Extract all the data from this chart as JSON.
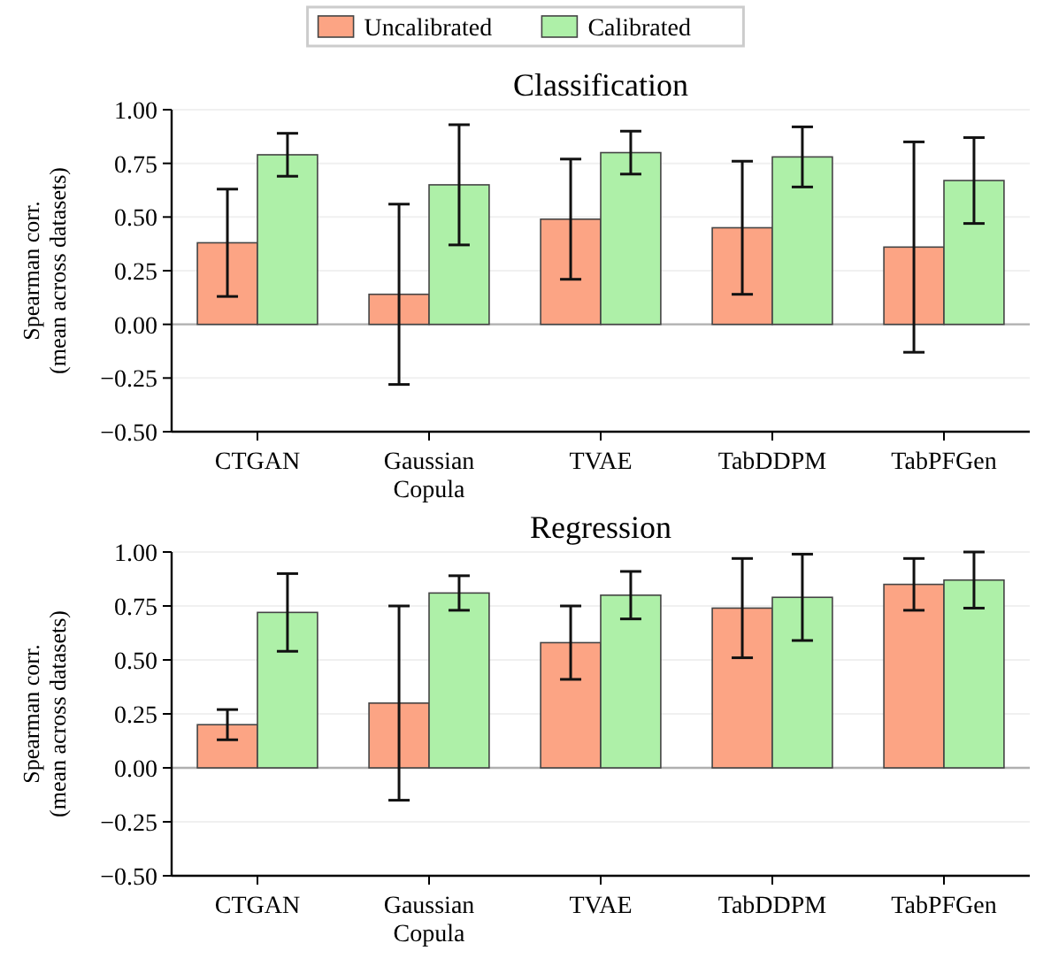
{
  "chart_data": [
    {
      "type": "bar",
      "title": "Classification",
      "ylabel": "Spearman corr.\n(mean across datasets)",
      "categories": [
        "CTGAN",
        "Gaussian\nCopula",
        "TVAE",
        "TabDDPM",
        "TabPFGen"
      ],
      "series": [
        {
          "name": "Uncalibrated",
          "color": "#fca484",
          "values": [
            0.38,
            0.14,
            0.49,
            0.45,
            0.36
          ],
          "errors": [
            [
              0.13,
              0.63
            ],
            [
              -0.28,
              0.56
            ],
            [
              0.21,
              0.77
            ],
            [
              0.14,
              0.76
            ],
            [
              -0.13,
              0.85
            ]
          ]
        },
        {
          "name": "Calibrated",
          "color": "#aef0a8",
          "values": [
            0.79,
            0.65,
            0.8,
            0.78,
            0.67
          ],
          "errors": [
            [
              0.69,
              0.89
            ],
            [
              0.37,
              0.93
            ],
            [
              0.7,
              0.9
            ],
            [
              0.64,
              0.92
            ],
            [
              0.47,
              0.87
            ]
          ]
        }
      ],
      "ylim": [
        -0.5,
        1.0
      ],
      "yticks": [
        {
          "value": -0.5,
          "label": "−0.50"
        },
        {
          "value": -0.25,
          "label": "−0.25"
        },
        {
          "value": 0,
          "label": "0.00"
        },
        {
          "value": 0.25,
          "label": "0.25"
        },
        {
          "value": 0.5,
          "label": "0.50"
        },
        {
          "value": 0.75,
          "label": "0.75"
        },
        {
          "value": 1.0,
          "label": "1.00"
        }
      ],
      "grid": "y",
      "legend": "top",
      "ref_lines": [
        {
          "axis": "y",
          "value": 0,
          "color": "#b0b0b0"
        }
      ]
    },
    {
      "type": "bar",
      "title": "Regression",
      "ylabel": "Spearman corr.\n(mean across datasets)",
      "categories": [
        "CTGAN",
        "Gaussian\nCopula",
        "TVAE",
        "TabDDPM",
        "TabPFGen"
      ],
      "series": [
        {
          "color": "#fca484",
          "values": [
            0.2,
            0.3,
            0.58,
            0.74,
            0.85
          ],
          "errors": [
            [
              0.13,
              0.27
            ],
            [
              -0.15,
              0.75
            ],
            [
              0.41,
              0.75
            ],
            [
              0.51,
              0.97
            ],
            [
              0.73,
              0.97
            ]
          ]
        },
        {
          "color": "#aef0a8",
          "values": [
            0.72,
            0.81,
            0.8,
            0.79,
            0.87
          ],
          "errors": [
            [
              0.54,
              0.9
            ],
            [
              0.73,
              0.89
            ],
            [
              0.69,
              0.91
            ],
            [
              0.59,
              0.99
            ],
            [
              0.74,
              1.0
            ]
          ]
        }
      ],
      "ylim": [
        -0.5,
        1.0
      ],
      "yticks": [
        {
          "value": -0.5,
          "label": "−0.50"
        },
        {
          "value": -0.25,
          "label": "−0.25"
        },
        {
          "value": 0,
          "label": "0.00"
        },
        {
          "value": 0.25,
          "label": "0.25"
        },
        {
          "value": 0.5,
          "label": "0.50"
        },
        {
          "value": 0.75,
          "label": "0.75"
        },
        {
          "value": 1.0,
          "label": "1.00"
        }
      ],
      "grid": "y",
      "legend": false,
      "ref_lines": [
        {
          "axis": "y",
          "value": 0,
          "color": "#b0b0b0"
        }
      ]
    }
  ]
}
